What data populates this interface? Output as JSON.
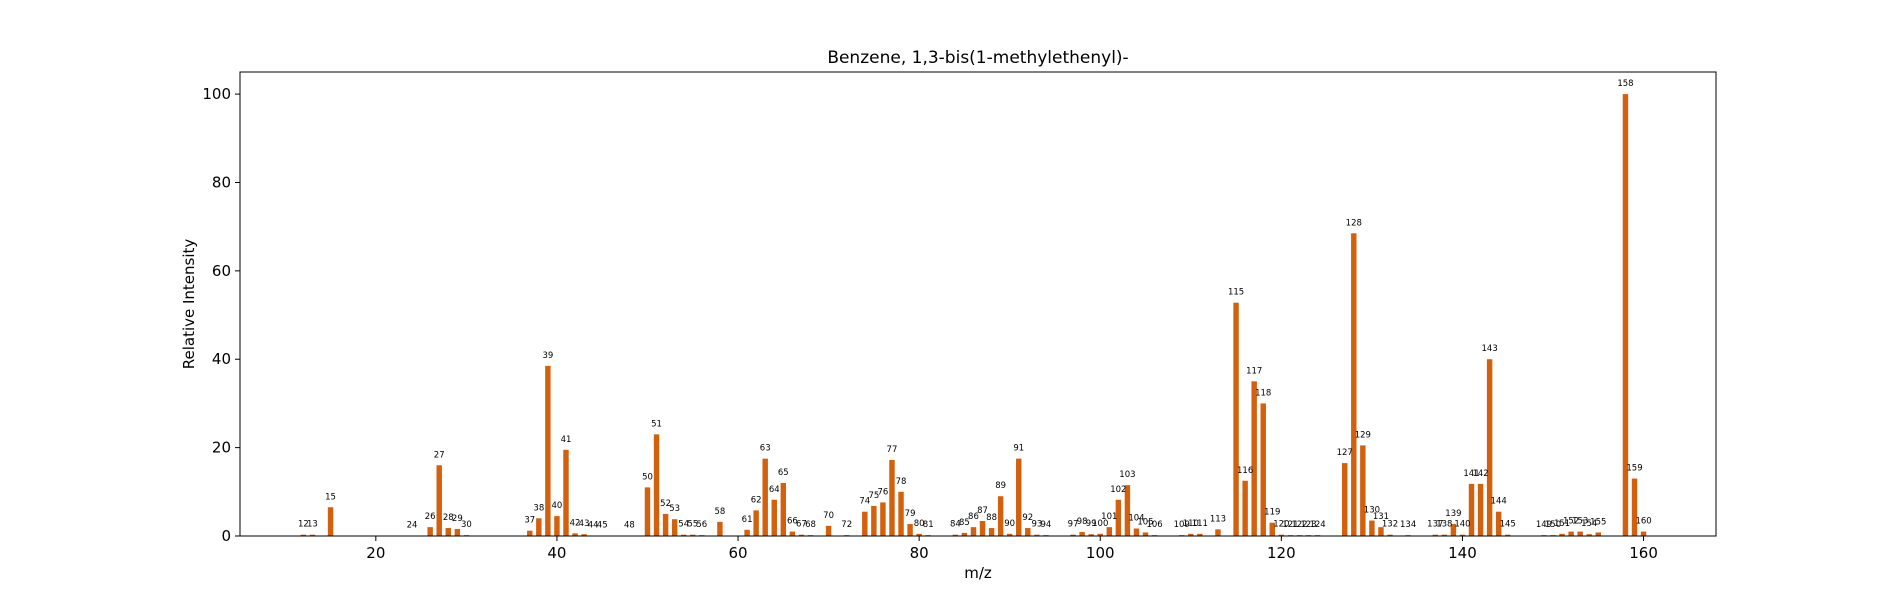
{
  "chart_data": {
    "type": "bar",
    "title": "Benzene, 1,3-bis(1-methylethenyl)-",
    "xlabel": "m/z",
    "ylabel": "Relative Intensity",
    "xlim": [
      5,
      168
    ],
    "ylim": [
      0,
      105
    ],
    "xticks": [
      20,
      40,
      60,
      80,
      100,
      120,
      140,
      160
    ],
    "yticks": [
      0,
      20,
      40,
      60,
      80,
      100
    ],
    "grid": false,
    "bar_color": "#d2600c",
    "peaks": [
      {
        "mz": 12,
        "intensity": 0.3
      },
      {
        "mz": 13,
        "intensity": 0.3
      },
      {
        "mz": 15,
        "intensity": 6.5
      },
      {
        "mz": 24,
        "intensity": 0.1
      },
      {
        "mz": 26,
        "intensity": 2.0
      },
      {
        "mz": 27,
        "intensity": 16.0
      },
      {
        "mz": 28,
        "intensity": 1.8
      },
      {
        "mz": 29,
        "intensity": 1.6
      },
      {
        "mz": 30,
        "intensity": 0.2
      },
      {
        "mz": 37,
        "intensity": 1.2
      },
      {
        "mz": 38,
        "intensity": 4.0
      },
      {
        "mz": 39,
        "intensity": 38.5
      },
      {
        "mz": 40,
        "intensity": 4.5
      },
      {
        "mz": 41,
        "intensity": 19.5
      },
      {
        "mz": 42,
        "intensity": 0.6
      },
      {
        "mz": 43,
        "intensity": 0.4
      },
      {
        "mz": 44,
        "intensity": 0.1
      },
      {
        "mz": 45,
        "intensity": 0.1
      },
      {
        "mz": 48,
        "intensity": 0.1
      },
      {
        "mz": 50,
        "intensity": 11.0
      },
      {
        "mz": 51,
        "intensity": 23.0
      },
      {
        "mz": 52,
        "intensity": 5.0
      },
      {
        "mz": 53,
        "intensity": 3.8
      },
      {
        "mz": 54,
        "intensity": 0.3
      },
      {
        "mz": 55,
        "intensity": 0.3
      },
      {
        "mz": 56,
        "intensity": 0.2
      },
      {
        "mz": 58,
        "intensity": 3.2
      },
      {
        "mz": 61,
        "intensity": 1.4
      },
      {
        "mz": 62,
        "intensity": 5.8
      },
      {
        "mz": 63,
        "intensity": 17.5
      },
      {
        "mz": 64,
        "intensity": 8.2
      },
      {
        "mz": 65,
        "intensity": 12.0
      },
      {
        "mz": 66,
        "intensity": 1.0
      },
      {
        "mz": 67,
        "intensity": 0.3
      },
      {
        "mz": 68,
        "intensity": 0.2
      },
      {
        "mz": 70,
        "intensity": 2.3
      },
      {
        "mz": 72,
        "intensity": 0.2
      },
      {
        "mz": 74,
        "intensity": 5.5
      },
      {
        "mz": 75,
        "intensity": 6.8
      },
      {
        "mz": 76,
        "intensity": 7.6
      },
      {
        "mz": 77,
        "intensity": 17.2
      },
      {
        "mz": 78,
        "intensity": 10.0
      },
      {
        "mz": 79,
        "intensity": 2.7
      },
      {
        "mz": 80,
        "intensity": 0.5
      },
      {
        "mz": 81,
        "intensity": 0.2
      },
      {
        "mz": 84,
        "intensity": 0.3
      },
      {
        "mz": 85,
        "intensity": 0.7
      },
      {
        "mz": 86,
        "intensity": 2.0
      },
      {
        "mz": 87,
        "intensity": 3.4
      },
      {
        "mz": 88,
        "intensity": 1.8
      },
      {
        "mz": 89,
        "intensity": 9.0
      },
      {
        "mz": 90,
        "intensity": 0.5
      },
      {
        "mz": 91,
        "intensity": 17.5
      },
      {
        "mz": 92,
        "intensity": 1.8
      },
      {
        "mz": 93,
        "intensity": 0.3
      },
      {
        "mz": 94,
        "intensity": 0.2
      },
      {
        "mz": 97,
        "intensity": 0.3
      },
      {
        "mz": 98,
        "intensity": 0.9
      },
      {
        "mz": 99,
        "intensity": 0.4
      },
      {
        "mz": 100,
        "intensity": 0.5
      },
      {
        "mz": 101,
        "intensity": 2.0
      },
      {
        "mz": 102,
        "intensity": 8.2
      },
      {
        "mz": 103,
        "intensity": 11.5
      },
      {
        "mz": 104,
        "intensity": 1.7
      },
      {
        "mz": 105,
        "intensity": 0.8
      },
      {
        "mz": 106,
        "intensity": 0.2
      },
      {
        "mz": 109,
        "intensity": 0.2
      },
      {
        "mz": 110,
        "intensity": 0.5
      },
      {
        "mz": 111,
        "intensity": 0.5
      },
      {
        "mz": 113,
        "intensity": 1.5
      },
      {
        "mz": 115,
        "intensity": 52.8
      },
      {
        "mz": 116,
        "intensity": 12.5
      },
      {
        "mz": 117,
        "intensity": 35.0
      },
      {
        "mz": 118,
        "intensity": 30.0
      },
      {
        "mz": 119,
        "intensity": 3.0
      },
      {
        "mz": 120,
        "intensity": 0.3
      },
      {
        "mz": 121,
        "intensity": 0.2
      },
      {
        "mz": 122,
        "intensity": 0.2
      },
      {
        "mz": 123,
        "intensity": 0.2
      },
      {
        "mz": 124,
        "intensity": 0.2
      },
      {
        "mz": 127,
        "intensity": 16.5
      },
      {
        "mz": 128,
        "intensity": 68.5
      },
      {
        "mz": 129,
        "intensity": 20.5
      },
      {
        "mz": 130,
        "intensity": 3.5
      },
      {
        "mz": 131,
        "intensity": 2.0
      },
      {
        "mz": 132,
        "intensity": 0.3
      },
      {
        "mz": 134,
        "intensity": 0.2
      },
      {
        "mz": 137,
        "intensity": 0.3
      },
      {
        "mz": 138,
        "intensity": 0.3
      },
      {
        "mz": 139,
        "intensity": 2.7
      },
      {
        "mz": 140,
        "intensity": 0.3
      },
      {
        "mz": 141,
        "intensity": 11.8
      },
      {
        "mz": 142,
        "intensity": 11.8
      },
      {
        "mz": 143,
        "intensity": 40.0
      },
      {
        "mz": 144,
        "intensity": 5.5
      },
      {
        "mz": 145,
        "intensity": 0.3
      },
      {
        "mz": 149,
        "intensity": 0.2
      },
      {
        "mz": 150,
        "intensity": 0.2
      },
      {
        "mz": 151,
        "intensity": 0.5
      },
      {
        "mz": 152,
        "intensity": 1.0
      },
      {
        "mz": 153,
        "intensity": 1.0
      },
      {
        "mz": 154,
        "intensity": 0.4
      },
      {
        "mz": 155,
        "intensity": 0.8
      },
      {
        "mz": 158,
        "intensity": 100.0
      },
      {
        "mz": 159,
        "intensity": 13.0
      },
      {
        "mz": 160,
        "intensity": 1.0
      }
    ]
  }
}
